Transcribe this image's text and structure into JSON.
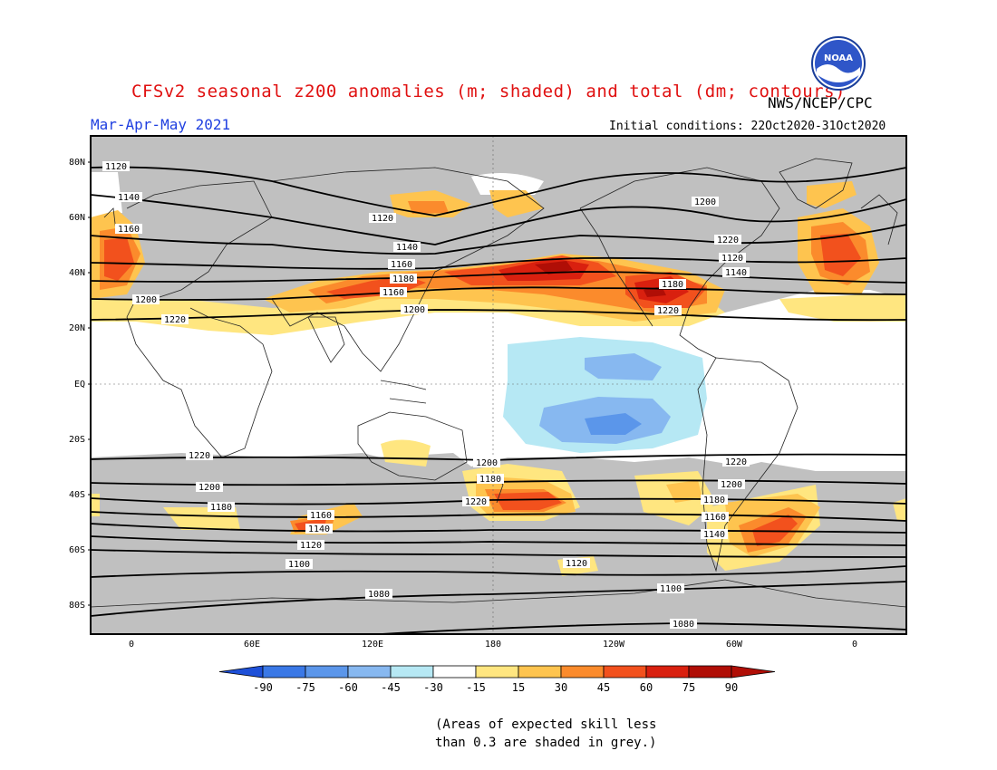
{
  "header": {
    "title": "CFSv2 seasonal z200 anomalies (m; shaded) and total (dm; contours)",
    "period": "Mar-Apr-May 2021",
    "agency": "NWS/NCEP/CPC",
    "initial_conditions": "Initial conditions: 22Oct2020-31Oct2020",
    "logo_text": "NOAA"
  },
  "map": {
    "lat_labels": [
      "80N",
      "60N",
      "40N",
      "20N",
      "EQ",
      "20S",
      "40S",
      "60S",
      "80S"
    ],
    "lon_labels": [
      "0",
      "60E",
      "120E",
      "180",
      "120W",
      "60W",
      "0"
    ],
    "contours": [
      {
        "label": "1080",
        "lines": 2
      },
      {
        "label": "1100"
      },
      {
        "label": "1120"
      },
      {
        "label": "1140"
      },
      {
        "label": "1160"
      },
      {
        "label": "1180"
      },
      {
        "label": "1200"
      },
      {
        "label": "1220"
      }
    ],
    "contour_labels": {
      "nh": [
        "1120",
        "1140",
        "1160",
        "1120",
        "1140",
        "1160",
        "1180",
        "1200",
        "1220",
        "1120",
        "1140",
        "1160",
        "1180",
        "1200",
        "1220",
        "1200",
        "1220"
      ],
      "sh": [
        "1220",
        "1200",
        "1180",
        "1220",
        "1200",
        "1180",
        "1160",
        "1140",
        "1120",
        "1100",
        "1080",
        "1220",
        "1200",
        "1180",
        "1160",
        "1140",
        "1120",
        "1100",
        "1080"
      ]
    }
  },
  "colorbar": {
    "labels": [
      "-90",
      "-75",
      "-60",
      "-45",
      "-30",
      "-15",
      "15",
      "30",
      "45",
      "60",
      "75",
      "90"
    ],
    "colors": [
      "#1e50d8",
      "#3a78e6",
      "#5b96ea",
      "#87b8f0",
      "#b6e8f4",
      "#ffffff",
      "#ffe680",
      "#fec44f",
      "#fb8b2c",
      "#f2511d",
      "#d9200f",
      "#b00e06"
    ]
  },
  "footnote": {
    "line1": "(Areas of expected skill less",
    "line2": "than 0.3 are shaded in grey.)"
  },
  "colors": {
    "title": "#e01010",
    "period": "#2040e0",
    "low_skill_grey": "#c0c0c0"
  }
}
